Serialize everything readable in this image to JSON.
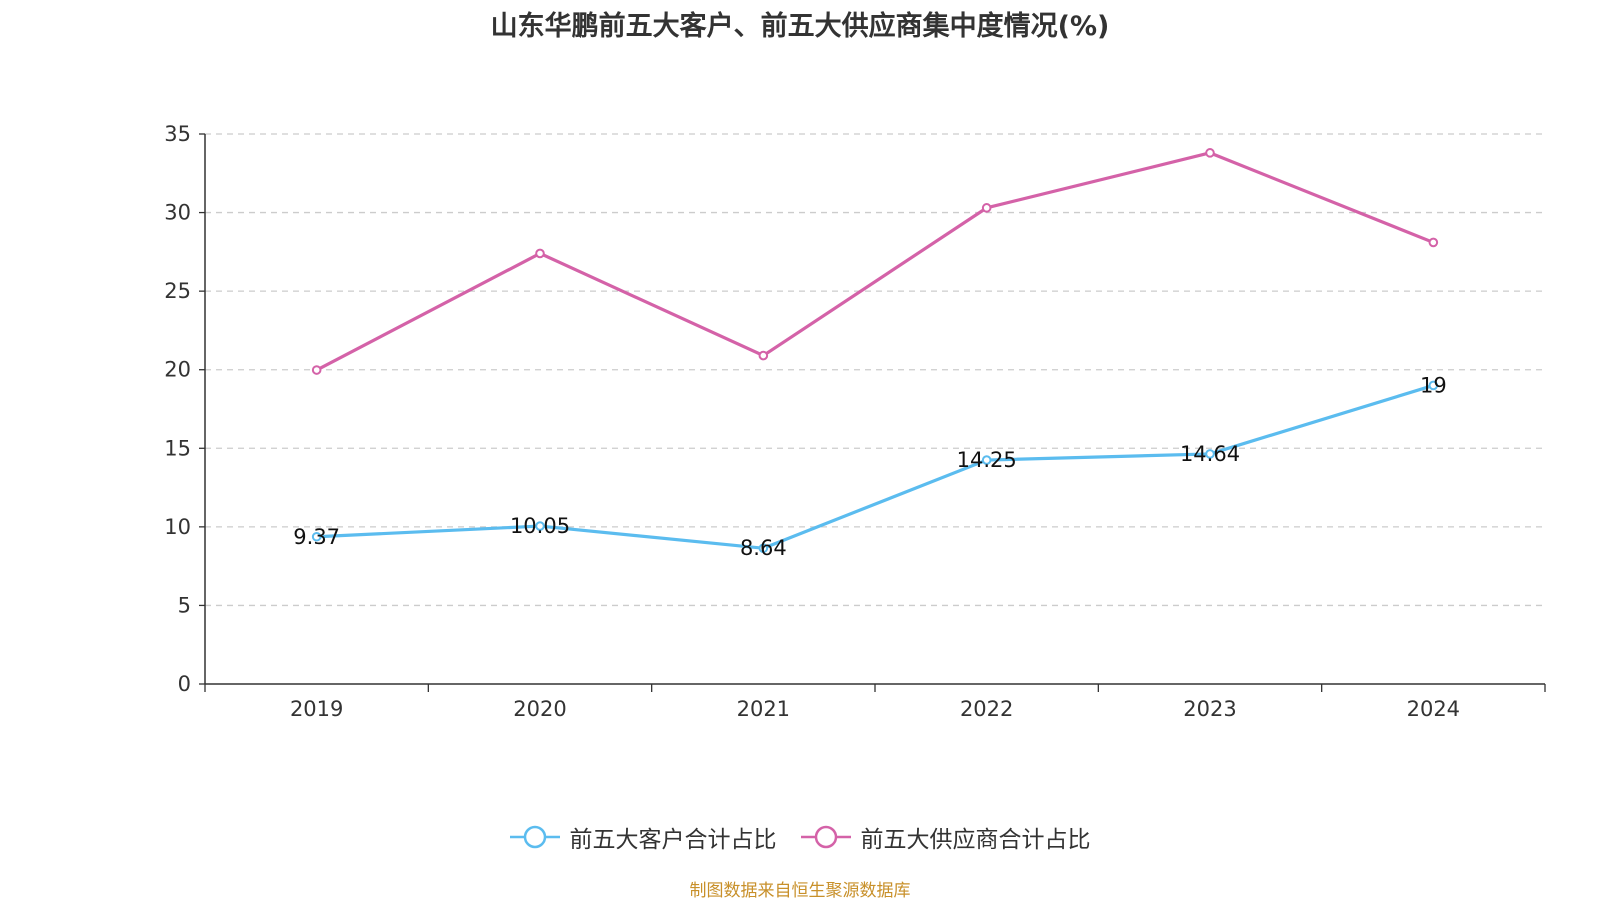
{
  "chart_data": {
    "type": "line",
    "title": "山东华鹏前五大客户、前五大供应商集中度情况(%)",
    "categories": [
      "2019",
      "2020",
      "2021",
      "2022",
      "2023",
      "2024"
    ],
    "ylim": [
      0,
      35
    ],
    "yticks": [
      0,
      5,
      10,
      15,
      20,
      25,
      30,
      35
    ],
    "grid": "horizontal dashed",
    "legend_position": "bottom",
    "series": [
      {
        "name": "前五大客户合计占比",
        "color": "#5bbcef",
        "values": [
          9.37,
          10.05,
          8.64,
          14.25,
          14.64,
          19
        ],
        "labels": [
          "9.37",
          "10.05",
          "8.64",
          "14.25",
          "14.64",
          "19"
        ],
        "show_labels": true
      },
      {
        "name": "前五大供应商合计占比",
        "color": "#d462a8",
        "values": [
          19.98,
          27.4,
          20.9,
          30.3,
          33.8,
          28.1
        ],
        "show_labels": false
      }
    ],
    "source": "制图数据来自恒生聚源数据库"
  }
}
